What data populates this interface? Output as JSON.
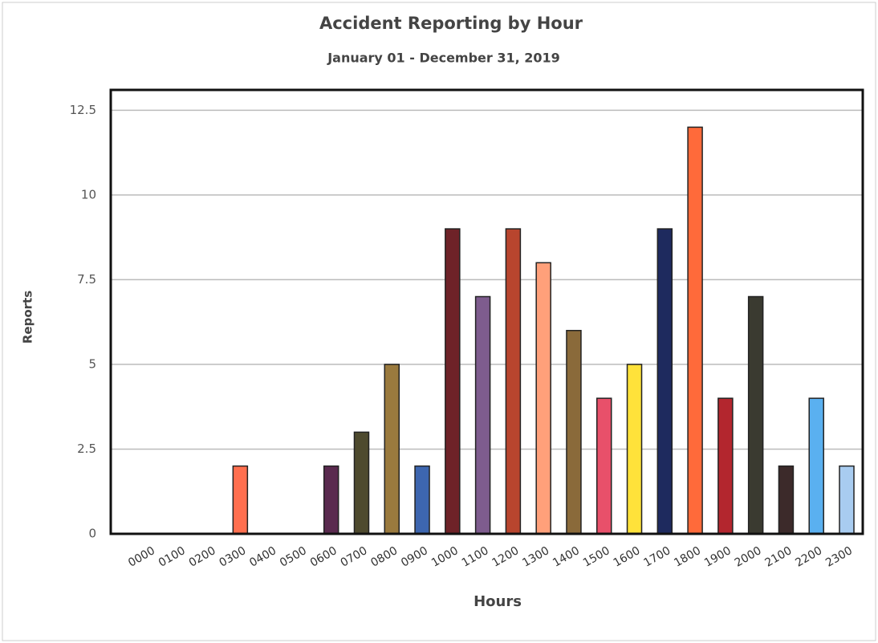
{
  "chart_data": {
    "type": "bar",
    "title": "Accident Reporting by Hour",
    "subtitle": "January 01 - December 31, 2019",
    "xlabel": "Hours",
    "ylabel": "Reports",
    "categories": [
      "0000",
      "0100",
      "0200",
      "0300",
      "0400",
      "0500",
      "0600",
      "0700",
      "0800",
      "0900",
      "1000",
      "1100",
      "1200",
      "1300",
      "1400",
      "1500",
      "1600",
      "1700",
      "1800",
      "1900",
      "2000",
      "2100",
      "2200",
      "2300"
    ],
    "values": [
      0,
      0,
      0,
      2,
      0,
      0,
      2,
      3,
      5,
      2,
      9,
      7,
      9,
      8,
      6,
      4,
      5,
      9,
      12,
      4,
      7,
      2,
      4,
      2
    ],
    "colors": [
      null,
      null,
      null,
      "#ff6f4f",
      null,
      null,
      "#5a2a4f",
      "#4e4a2e",
      "#9a7a3e",
      "#3d66b0",
      "#6e2228",
      "#7e5c8e",
      "#b8452e",
      "#ffa07a",
      "#8a6a3a",
      "#e8506a",
      "#ffe23a",
      "#1e2a5e",
      "#ff6a3a",
      "#b3262e",
      "#3a3a30",
      "#3c2a2a",
      "#5ab0f0",
      "#a8ccf0"
    ],
    "ylim": [
      0,
      13.1
    ],
    "yticks": [
      0,
      2.5,
      5,
      7.5,
      10,
      12.5
    ],
    "grid": true
  }
}
